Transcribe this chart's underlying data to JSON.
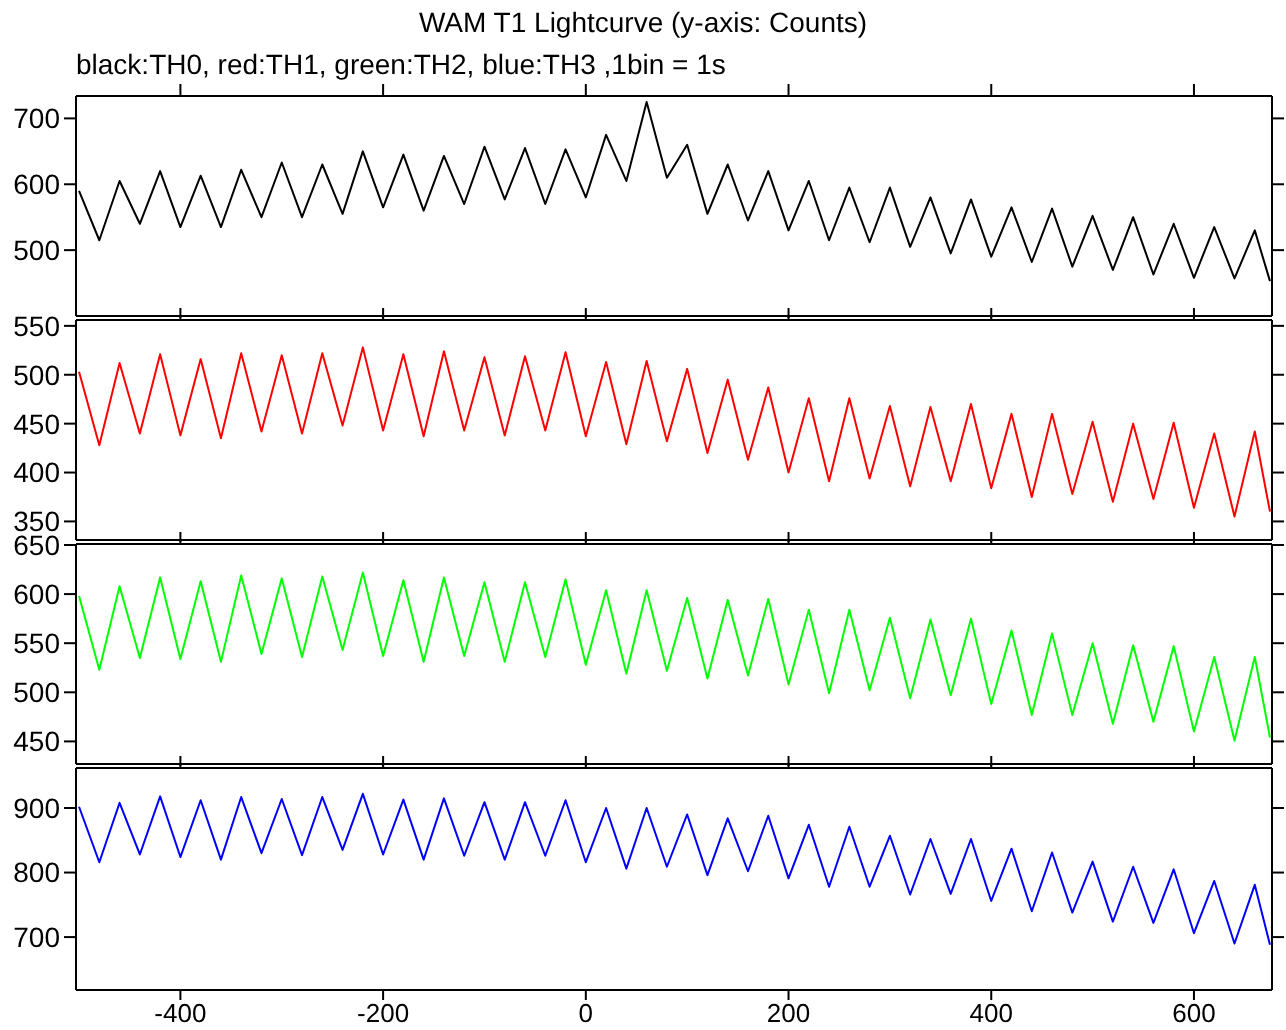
{
  "chart_data": [
    {
      "type": "line",
      "title": "WAM T1 Lightcurve (y-axis: Counts)",
      "subtitle": "black:TH0, red:TH1, green:TH2, blue:TH3 ,1bin = 1s",
      "tick_labels": "y",
      "grid": false,
      "marker": "none",
      "line_style": "solid",
      "x": [
        -500,
        -480,
        -460,
        -440,
        -420,
        -400,
        -380,
        -360,
        -340,
        -320,
        -300,
        -280,
        -260,
        -240,
        -220,
        -200,
        -180,
        -160,
        -140,
        -120,
        -100,
        -80,
        -60,
        -40,
        -20,
        0,
        20,
        40,
        60,
        80,
        100,
        120,
        140,
        160,
        180,
        200,
        220,
        240,
        260,
        280,
        300,
        320,
        340,
        360,
        380,
        400,
        420,
        440,
        460,
        480,
        500,
        520,
        540,
        560,
        580,
        600,
        620,
        640,
        660,
        675
      ],
      "xlim": [
        -503,
        677
      ],
      "xticks": [
        -400,
        -200,
        0,
        200,
        400,
        600
      ],
      "ylim": [
        400,
        734
      ],
      "yticks": [
        500,
        600,
        700
      ],
      "series": [
        {
          "color": "#000000",
          "values": [
            590,
            515,
            605,
            540,
            620,
            535,
            613,
            535,
            622,
            550,
            633,
            550,
            630,
            555,
            650,
            565,
            645,
            560,
            643,
            570,
            657,
            577,
            655,
            570,
            653,
            580,
            675,
            605,
            725,
            610,
            660,
            555,
            630,
            545,
            620,
            530,
            605,
            515,
            595,
            512,
            595,
            505,
            580,
            495,
            577,
            490,
            565,
            482,
            563,
            475,
            552,
            470,
            550,
            463,
            540,
            458,
            535,
            457,
            530,
            453
          ]
        }
      ]
    },
    {
      "type": "line",
      "tick_labels": "y",
      "grid": false,
      "marker": "none",
      "line_style": "solid",
      "x": [
        -500,
        -480,
        -460,
        -440,
        -420,
        -400,
        -380,
        -360,
        -340,
        -320,
        -300,
        -280,
        -260,
        -240,
        -220,
        -200,
        -180,
        -160,
        -140,
        -120,
        -100,
        -80,
        -60,
        -40,
        -20,
        0,
        20,
        40,
        60,
        80,
        100,
        120,
        140,
        160,
        180,
        200,
        220,
        240,
        260,
        280,
        300,
        320,
        340,
        360,
        380,
        400,
        420,
        440,
        460,
        480,
        500,
        520,
        540,
        560,
        580,
        600,
        620,
        640,
        660,
        675
      ],
      "xlim": [
        -503,
        677
      ],
      "xticks": [
        -400,
        -200,
        0,
        200,
        400,
        600
      ],
      "ylim": [
        331,
        556
      ],
      "yticks": [
        350,
        400,
        450,
        500,
        550
      ],
      "series": [
        {
          "color": "#ff0000",
          "values": [
            503,
            428,
            512,
            440,
            521,
            438,
            516,
            435,
            522,
            442,
            520,
            440,
            522,
            448,
            528,
            443,
            521,
            437,
            524,
            443,
            518,
            438,
            519,
            443,
            523,
            437,
            513,
            429,
            514,
            432,
            506,
            420,
            495,
            413,
            487,
            400,
            476,
            391,
            476,
            394,
            468,
            386,
            467,
            391,
            470,
            384,
            460,
            375,
            460,
            378,
            452,
            370,
            450,
            373,
            451,
            364,
            440,
            355,
            442,
            360
          ]
        }
      ]
    },
    {
      "type": "line",
      "tick_labels": "y",
      "grid": false,
      "marker": "none",
      "line_style": "solid",
      "x": [
        -500,
        -480,
        -460,
        -440,
        -420,
        -400,
        -380,
        -360,
        -340,
        -320,
        -300,
        -280,
        -260,
        -240,
        -220,
        -200,
        -180,
        -160,
        -140,
        -120,
        -100,
        -80,
        -60,
        -40,
        -20,
        0,
        20,
        40,
        60,
        80,
        100,
        120,
        140,
        160,
        180,
        200,
        220,
        240,
        260,
        280,
        300,
        320,
        340,
        360,
        380,
        400,
        420,
        440,
        460,
        480,
        500,
        520,
        540,
        560,
        580,
        600,
        620,
        640,
        660,
        675
      ],
      "xlim": [
        -503,
        677
      ],
      "xticks": [
        -400,
        -200,
        0,
        200,
        400,
        600
      ],
      "ylim": [
        427,
        651
      ],
      "yticks": [
        450,
        500,
        550,
        600,
        650
      ],
      "series": [
        {
          "color": "#00ff00",
          "values": [
            598,
            523,
            608,
            535,
            617,
            534,
            613,
            531,
            619,
            539,
            616,
            536,
            618,
            543,
            622,
            537,
            614,
            531,
            617,
            537,
            612,
            531,
            612,
            536,
            615,
            528,
            604,
            519,
            604,
            522,
            596,
            514,
            594,
            517,
            595,
            508,
            584,
            499,
            584,
            502,
            576,
            494,
            574,
            497,
            575,
            488,
            563,
            477,
            560,
            477,
            550,
            468,
            548,
            470,
            547,
            460,
            536,
            451,
            536,
            454
          ]
        }
      ]
    },
    {
      "type": "line",
      "grid": false,
      "marker": "none",
      "line_style": "solid",
      "x": [
        -500,
        -480,
        -460,
        -440,
        -420,
        -400,
        -380,
        -360,
        -340,
        -320,
        -300,
        -280,
        -260,
        -240,
        -220,
        -200,
        -180,
        -160,
        -140,
        -120,
        -100,
        -80,
        -60,
        -40,
        -20,
        0,
        20,
        40,
        60,
        80,
        100,
        120,
        140,
        160,
        180,
        200,
        220,
        240,
        260,
        280,
        300,
        320,
        340,
        360,
        380,
        400,
        420,
        440,
        460,
        480,
        500,
        520,
        540,
        560,
        580,
        600,
        620,
        640,
        660,
        675
      ],
      "xlim": [
        -503,
        677
      ],
      "xticks": [
        -400,
        -200,
        0,
        200,
        400,
        600
      ],
      "ylim": [
        618,
        962
      ],
      "yticks": [
        700,
        800,
        900
      ],
      "series": [
        {
          "color": "#0000ff",
          "values": [
            902,
            816,
            908,
            828,
            918,
            824,
            912,
            820,
            917,
            830,
            914,
            827,
            917,
            835,
            922,
            828,
            913,
            820,
            915,
            826,
            909,
            820,
            909,
            826,
            912,
            816,
            900,
            806,
            900,
            809,
            890,
            796,
            884,
            802,
            888,
            791,
            874,
            778,
            871,
            778,
            857,
            766,
            852,
            767,
            852,
            756,
            837,
            740,
            831,
            738,
            817,
            724,
            809,
            722,
            805,
            706,
            787,
            690,
            781,
            688
          ]
        }
      ]
    }
  ]
}
